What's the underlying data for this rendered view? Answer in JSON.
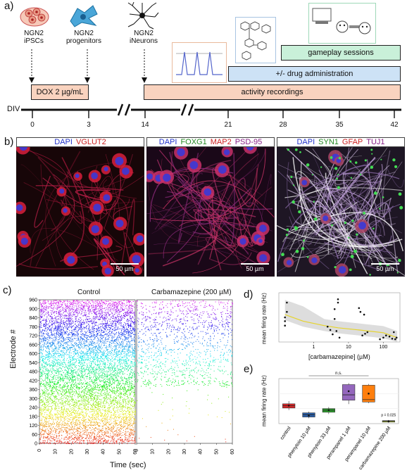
{
  "panel_a": {
    "label": "a)",
    "stages": [
      {
        "line1": "NGN2",
        "line2": "iPSCs",
        "icon": "cells-icon"
      },
      {
        "line1": "NGN2",
        "line2": "progenitors",
        "icon": "progenitor-icon"
      },
      {
        "line1": "NGN2",
        "line2": "iNeurons",
        "icon": "neuron-icon"
      }
    ],
    "bars": {
      "dox": "DOX 2 µg/mL",
      "activity": "activity recordings",
      "drug": "+/- drug administration",
      "gameplay": "gameplay sessions"
    },
    "div_label": "DIV",
    "div_ticks": [
      "0",
      "3",
      "14",
      "21",
      "28",
      "35",
      "42"
    ],
    "colors": {
      "dox": "#f9d3bf",
      "activity": "#f9d3bf",
      "drug": "#cde2f6",
      "gameplay": "#c9f0d9"
    }
  },
  "panel_b": {
    "label": "b)",
    "images": [
      {
        "markers": [
          {
            "text": "DAPI",
            "color": "#2233cc"
          },
          {
            "text": "VGLUT2",
            "color": "#cc2222"
          }
        ],
        "scale": "50 µm"
      },
      {
        "markers": [
          {
            "text": "DAPI",
            "color": "#2233cc"
          },
          {
            "text": "FOXG1",
            "color": "#228822"
          },
          {
            "text": "MAP2",
            "color": "#cc2222"
          },
          {
            "text": "PSD-95",
            "color": "#882288"
          }
        ],
        "scale": "50 µm"
      },
      {
        "markers": [
          {
            "text": "DAPI",
            "color": "#2233cc"
          },
          {
            "text": "SYN1",
            "color": "#228822"
          },
          {
            "text": "GFAP",
            "color": "#cc2222"
          },
          {
            "text": "TUJ1",
            "color": "#882288"
          }
        ],
        "scale": "50 µm"
      }
    ]
  },
  "panel_c": {
    "label": "c)",
    "control_title": "Control",
    "carb_title": "Carbamazepine (200 µM)",
    "ylabel": "Electrode #",
    "xlabel": "Time (sec)",
    "yticks": [
      "0",
      "60",
      "120",
      "180",
      "240",
      "300",
      "360",
      "420",
      "480",
      "540",
      "600",
      "660",
      "720",
      "780",
      "840",
      "900",
      "960"
    ],
    "xticks": [
      "0",
      "10",
      "20",
      "30",
      "40",
      "50",
      "60"
    ]
  },
  "panel_d": {
    "label": "d)",
    "ylabel": "mean firing rate (Hz)",
    "xlabel": "[carbamazepine] (µM)",
    "xticks": [
      "1",
      "10",
      "100"
    ]
  },
  "panel_e": {
    "label": "e)",
    "ylabel": "mean firing rate (Hz)",
    "ns_label": "n.s.",
    "p_label": "p = 0.025",
    "categories": [
      "control",
      "phenytoin 10 µM",
      "phenytoin 33 µM",
      "perampanel 1 µM",
      "perampanel 10 µM",
      "carbamazepine 200 µM"
    ],
    "colors": [
      "#d62728",
      "#2a5fa8",
      "#2ca02c",
      "#9467bd",
      "#ff7f0e",
      "#bcd22f"
    ]
  },
  "chart_data": [
    {
      "type": "scatter",
      "xlabel": "[carbamazepine] (µM)",
      "ylabel": "mean firing rate (Hz)",
      "x_scale": "log",
      "xlim": [
        0.1,
        300
      ],
      "points": [
        [
          0.15,
          0.45
        ],
        [
          0.15,
          0.3
        ],
        [
          0.17,
          0.55
        ],
        [
          0.17,
          0.72
        ],
        [
          0.15,
          0.38
        ],
        [
          2.5,
          0.28
        ],
        [
          3.0,
          0.22
        ],
        [
          3.5,
          0.14
        ],
        [
          4.0,
          0.6
        ],
        [
          4.0,
          0.42
        ],
        [
          4.5,
          0.2
        ],
        [
          5.0,
          0.78
        ],
        [
          5.0,
          0.72
        ],
        [
          5.5,
          0.08
        ],
        [
          20,
          0.62
        ],
        [
          22,
          0.55
        ],
        [
          25,
          0.12
        ],
        [
          28,
          0.5
        ],
        [
          30,
          0.15
        ],
        [
          35,
          0.18
        ],
        [
          80,
          0.05
        ],
        [
          100,
          0.08
        ],
        [
          120,
          0.12
        ],
        [
          150,
          0.1
        ],
        [
          180,
          0.06
        ],
        [
          200,
          0.18
        ],
        [
          220,
          0.05
        ],
        [
          240,
          0.08
        ]
      ],
      "trend": [
        [
          0.15,
          0.5
        ],
        [
          0.5,
          0.38
        ],
        [
          2,
          0.3
        ],
        [
          5,
          0.26
        ],
        [
          20,
          0.22
        ],
        [
          100,
          0.17
        ],
        [
          250,
          0.08
        ]
      ]
    },
    {
      "type": "box",
      "ylabel": "mean firing rate (Hz)",
      "categories": [
        "control",
        "phenytoin 10 µM",
        "phenytoin 33 µM",
        "perampanel 1 µM",
        "perampanel 10 µM",
        "carbamazepine 200 µM"
      ],
      "boxes": [
        {
          "q1": 0.52,
          "median": 0.6,
          "q3": 0.66,
          "low": 0.45,
          "high": 0.75,
          "mean": 0.6
        },
        {
          "q1": 0.22,
          "median": 0.3,
          "q3": 0.36,
          "low": 0.18,
          "high": 0.4,
          "mean": 0.27
        },
        {
          "q1": 0.38,
          "median": 0.45,
          "q3": 0.5,
          "low": 0.32,
          "high": 0.55,
          "mean": 0.45
        },
        {
          "q1": 0.78,
          "median": 0.96,
          "q3": 1.3,
          "low": 0.65,
          "high": 1.35,
          "mean": 1.08
        },
        {
          "q1": 0.72,
          "median": 0.8,
          "q3": 1.28,
          "low": 0.68,
          "high": 1.32,
          "mean": 1.0
        },
        {
          "q1": 0.05,
          "median": 0.08,
          "q3": 0.1,
          "low": 0.03,
          "high": 0.12,
          "mean": 0.08
        }
      ],
      "ylim": [
        0,
        1.5
      ]
    }
  ]
}
